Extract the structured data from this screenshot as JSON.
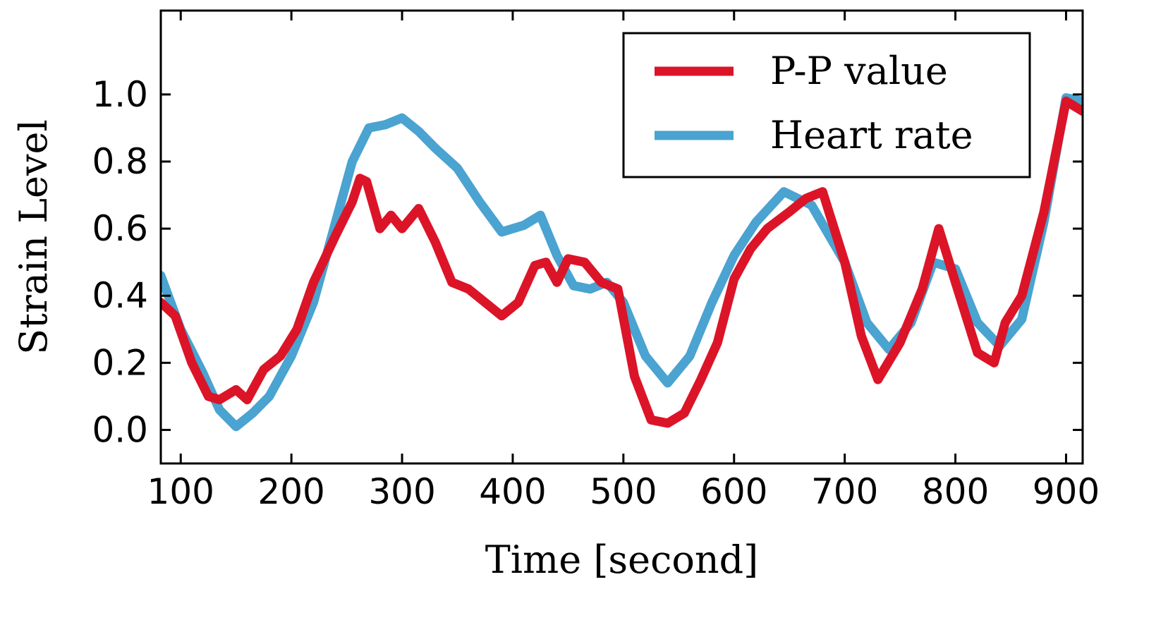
{
  "chart_data": {
    "type": "line",
    "title": "",
    "xlabel": "Time [second]",
    "ylabel": "Strain Level",
    "xlim": [
      82,
      915
    ],
    "ylim": [
      -0.1,
      1.25
    ],
    "xticks": [
      100,
      200,
      300,
      400,
      500,
      600,
      700,
      800,
      900
    ],
    "yticks": [
      0.0,
      0.2,
      0.4,
      0.6,
      0.8,
      1.0
    ],
    "xtick_labels": [
      "100",
      "200",
      "300",
      "400",
      "500",
      "600",
      "700",
      "800",
      "900"
    ],
    "ytick_labels": [
      "0.0",
      "0.2",
      "0.4",
      "0.6",
      "0.8",
      "1.0"
    ],
    "grid": false,
    "legend": {
      "position": "top-right"
    },
    "series": [
      {
        "name": "Heart rate",
        "color": "#4aa3d0",
        "x": [
          82,
          100,
          120,
          135,
          150,
          165,
          180,
          200,
          220,
          240,
          255,
          270,
          285,
          300,
          315,
          330,
          350,
          370,
          390,
          410,
          425,
          440,
          455,
          470,
          485,
          500,
          520,
          540,
          560,
          580,
          600,
          620,
          645,
          670,
          700,
          720,
          740,
          760,
          780,
          800,
          820,
          840,
          860,
          880,
          900,
          915
        ],
        "values": [
          0.46,
          0.3,
          0.17,
          0.06,
          0.01,
          0.05,
          0.1,
          0.22,
          0.38,
          0.62,
          0.8,
          0.9,
          0.91,
          0.93,
          0.89,
          0.84,
          0.78,
          0.68,
          0.59,
          0.61,
          0.64,
          0.52,
          0.43,
          0.42,
          0.44,
          0.38,
          0.22,
          0.14,
          0.22,
          0.38,
          0.52,
          0.62,
          0.71,
          0.67,
          0.5,
          0.32,
          0.24,
          0.32,
          0.5,
          0.48,
          0.32,
          0.25,
          0.33,
          0.62,
          0.99,
          0.98
        ]
      },
      {
        "name": "P-P value",
        "color": "#dc1428",
        "x": [
          82,
          95,
          110,
          125,
          135,
          150,
          160,
          175,
          190,
          205,
          220,
          240,
          255,
          262,
          268,
          280,
          290,
          300,
          315,
          330,
          345,
          360,
          375,
          390,
          405,
          420,
          430,
          440,
          450,
          465,
          480,
          495,
          510,
          525,
          540,
          555,
          570,
          585,
          600,
          615,
          630,
          650,
          665,
          680,
          700,
          715,
          730,
          750,
          770,
          785,
          800,
          820,
          835,
          845,
          860,
          880,
          900,
          915
        ],
        "values": [
          0.38,
          0.34,
          0.2,
          0.1,
          0.09,
          0.12,
          0.09,
          0.18,
          0.22,
          0.3,
          0.44,
          0.58,
          0.68,
          0.75,
          0.74,
          0.6,
          0.64,
          0.6,
          0.66,
          0.56,
          0.44,
          0.42,
          0.38,
          0.34,
          0.38,
          0.49,
          0.5,
          0.44,
          0.51,
          0.5,
          0.44,
          0.42,
          0.16,
          0.03,
          0.02,
          0.05,
          0.15,
          0.26,
          0.45,
          0.54,
          0.6,
          0.65,
          0.69,
          0.71,
          0.5,
          0.28,
          0.15,
          0.26,
          0.42,
          0.6,
          0.44,
          0.23,
          0.2,
          0.32,
          0.4,
          0.65,
          0.98,
          0.95
        ]
      }
    ]
  }
}
